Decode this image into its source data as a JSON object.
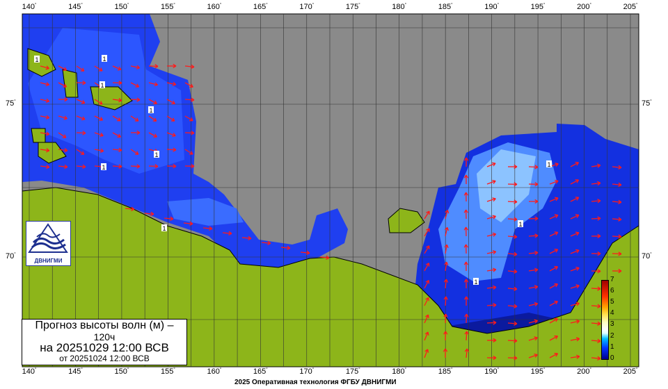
{
  "map": {
    "title_line1": "Прогноз высоты волн (м) –",
    "title_line2": "120ч",
    "title_line3": "на 20251029 12:00 ВСВ",
    "title_line4": "от 20251024 12:00 ВСВ",
    "footer": "2025 Оперативная технология ФГБУ ДВНИГМИ",
    "logo_text": "ДВНИГМИ",
    "lon_labels": [
      "140",
      "145",
      "150",
      "155",
      "160",
      "165",
      "170",
      "175",
      "180",
      "185",
      "190",
      "195",
      "200",
      "205"
    ],
    "lat_labels": [
      "75",
      "70"
    ],
    "colorbar": {
      "label_values": [
        "7",
        "6",
        "5",
        "4",
        "3",
        "2",
        "1",
        "0"
      ],
      "unit": "м",
      "min": 0,
      "max": 7
    },
    "contour_labels": [
      "1",
      "1",
      "1",
      "1",
      "1",
      "1",
      "1",
      "1",
      "1",
      "1"
    ],
    "colors": {
      "land": "#8db51a",
      "no_data": "#8a8a8a",
      "sea_low": "#0a1fb0",
      "sea_mid": "#2a5cff",
      "sea_high": "#7fb8ff",
      "arrow": "#ff1a1a"
    }
  }
}
